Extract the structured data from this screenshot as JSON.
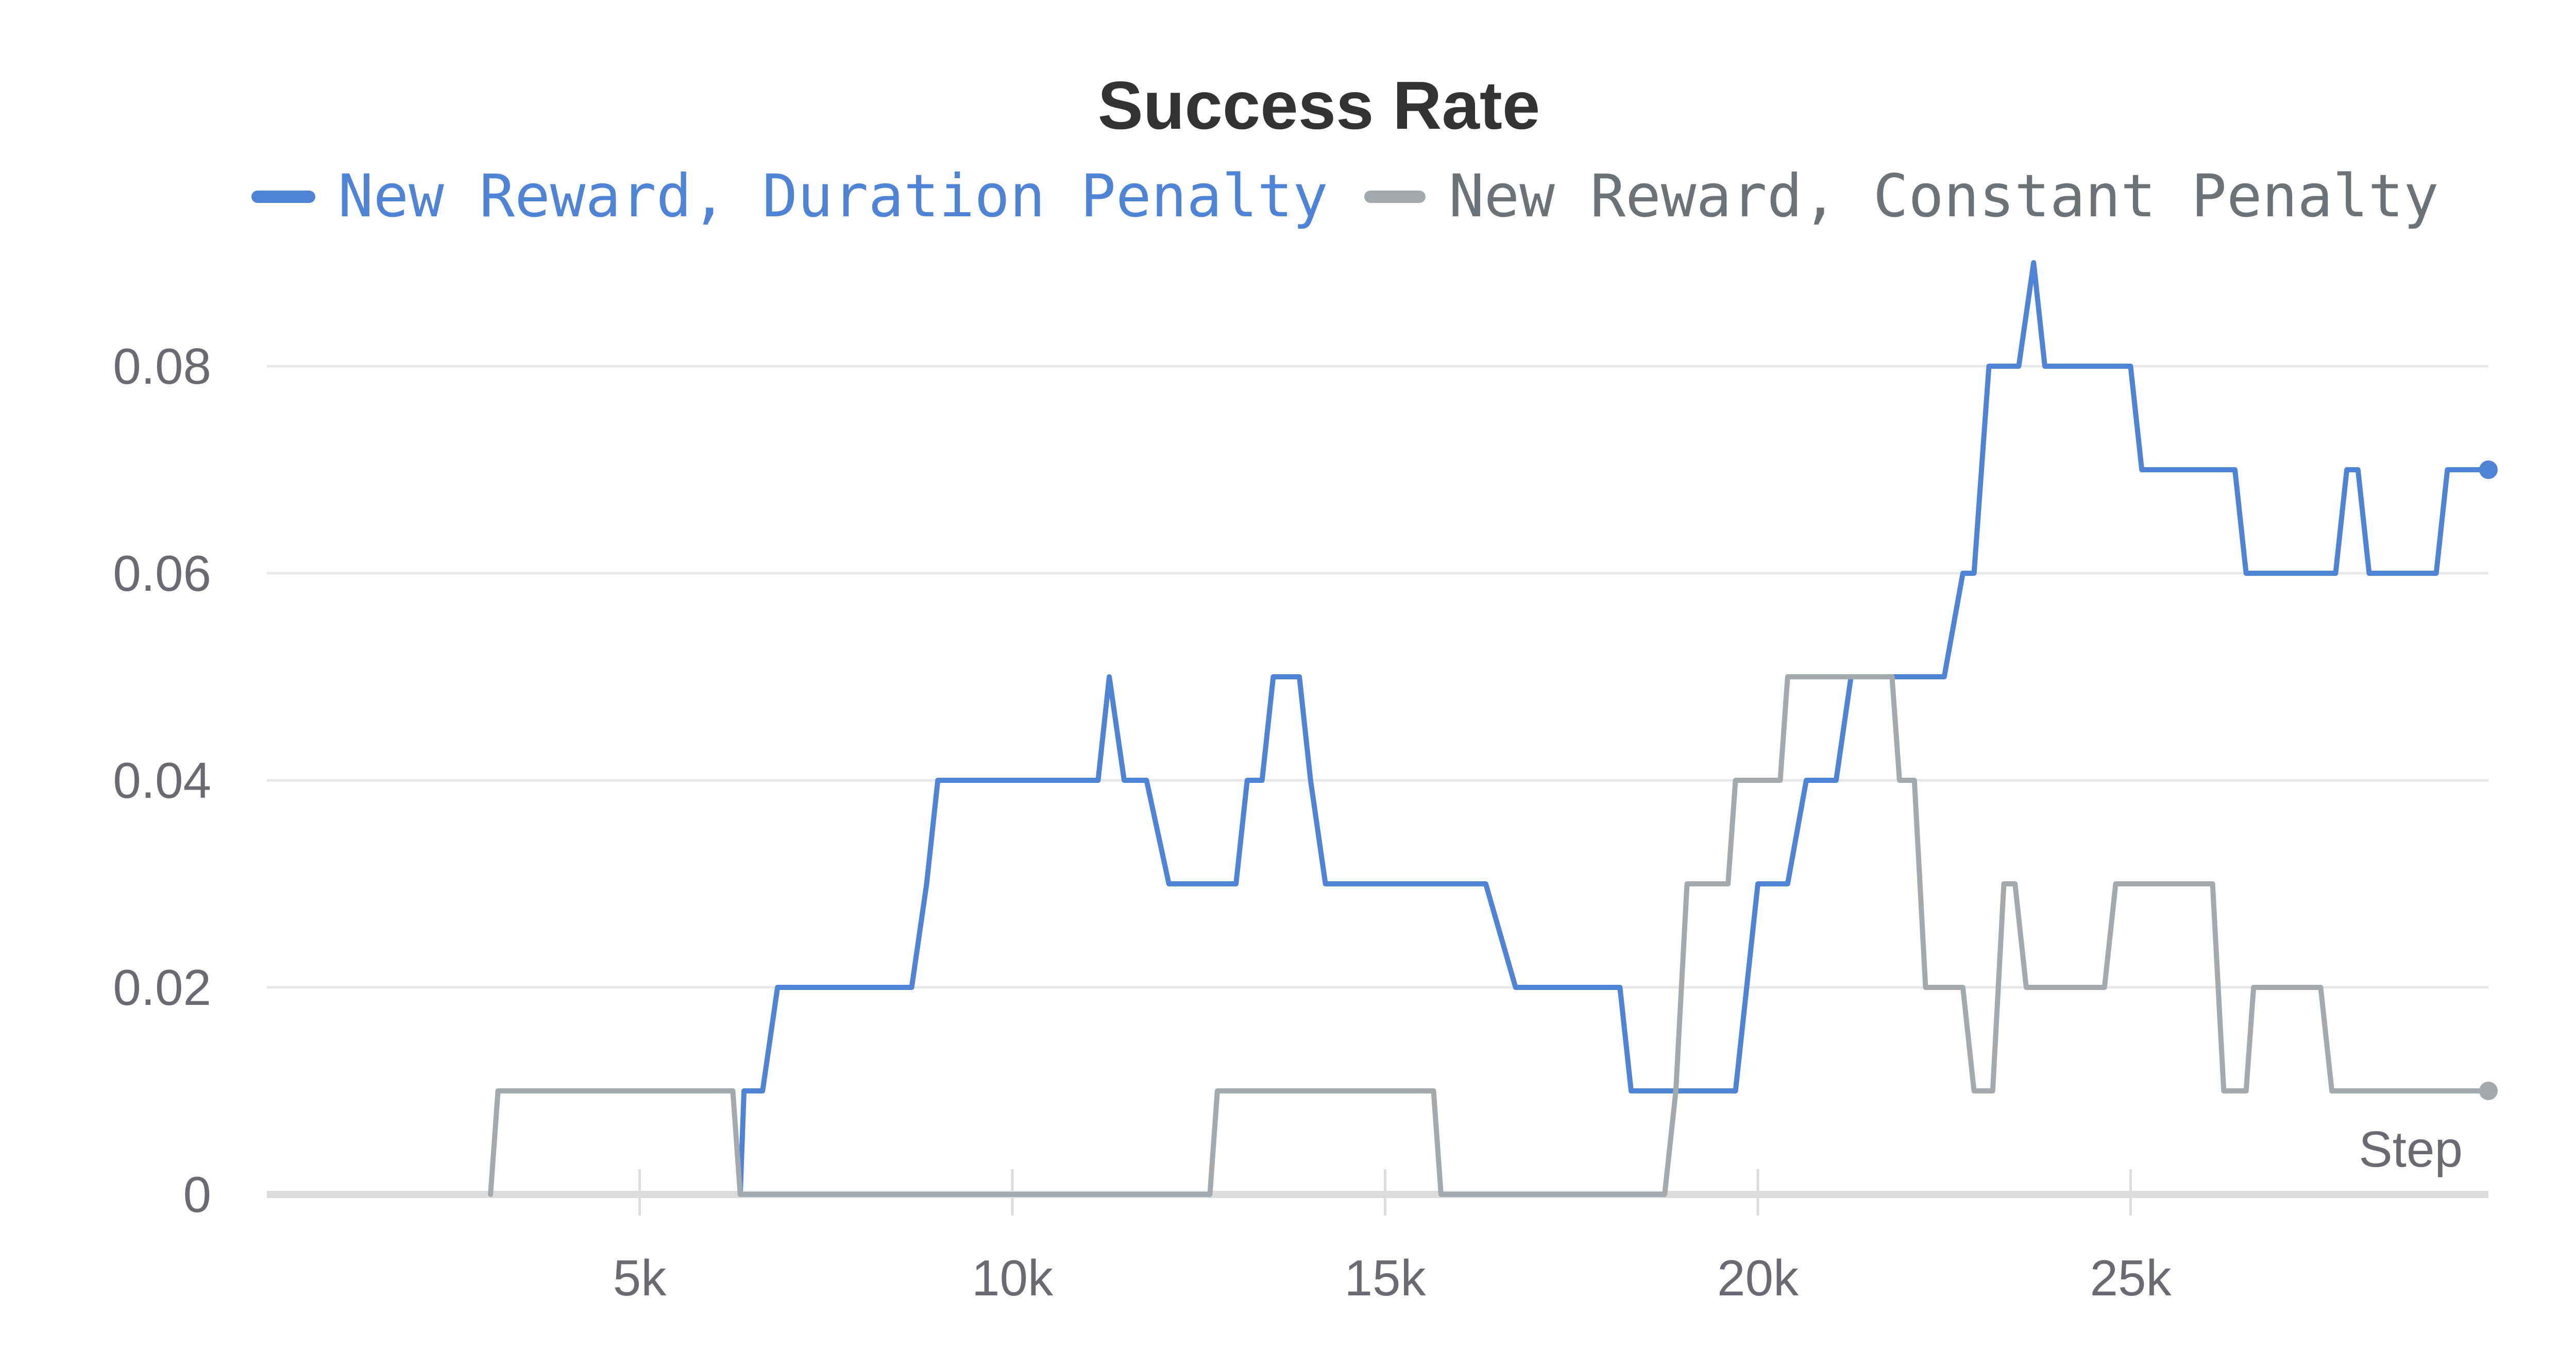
{
  "chart_data": {
    "type": "line",
    "title": "Success Rate",
    "xlabel": "Step",
    "ylabel": "",
    "xlim": [
      0,
      29800
    ],
    "ylim": [
      0,
      0.09
    ],
    "xticks": [
      5000,
      10000,
      15000,
      20000,
      25000
    ],
    "xtick_labels": [
      "5k",
      "10k",
      "15k",
      "20k",
      "25k"
    ],
    "yticks": [
      0,
      0.02,
      0.04,
      0.06,
      0.08
    ],
    "ytick_labels": [
      "0",
      "0.02",
      "0.04",
      "0.06",
      "0.08"
    ],
    "grid": true,
    "legend_position": "top",
    "series": [
      {
        "name": "New Reward, Duration Penalty",
        "color": "#4f83d6",
        "points": [
          [
            6350,
            0
          ],
          [
            6400,
            0.01
          ],
          [
            6650,
            0.01
          ],
          [
            6850,
            0.02
          ],
          [
            8650,
            0.02
          ],
          [
            8850,
            0.03
          ],
          [
            9000,
            0.04
          ],
          [
            11150,
            0.04
          ],
          [
            11300,
            0.05
          ],
          [
            11500,
            0.04
          ],
          [
            11800,
            0.04
          ],
          [
            12100,
            0.03
          ],
          [
            13000,
            0.03
          ],
          [
            13150,
            0.04
          ],
          [
            13350,
            0.04
          ],
          [
            13500,
            0.05
          ],
          [
            13850,
            0.05
          ],
          [
            14000,
            0.04
          ],
          [
            14200,
            0.03
          ],
          [
            16350,
            0.03
          ],
          [
            16750,
            0.02
          ],
          [
            18150,
            0.02
          ],
          [
            18300,
            0.01
          ],
          [
            19700,
            0.01
          ],
          [
            19850,
            0.02
          ],
          [
            20000,
            0.03
          ],
          [
            20400,
            0.03
          ],
          [
            20650,
            0.04
          ],
          [
            21050,
            0.04
          ],
          [
            21250,
            0.05
          ],
          [
            22500,
            0.05
          ],
          [
            22750,
            0.06
          ],
          [
            22900,
            0.06
          ],
          [
            23100,
            0.08
          ],
          [
            23500,
            0.08
          ],
          [
            23700,
            0.09
          ],
          [
            23850,
            0.08
          ],
          [
            25000,
            0.08
          ],
          [
            25150,
            0.07
          ],
          [
            26400,
            0.07
          ],
          [
            26550,
            0.06
          ],
          [
            27750,
            0.06
          ],
          [
            27900,
            0.07
          ],
          [
            28050,
            0.07
          ],
          [
            28200,
            0.06
          ],
          [
            29100,
            0.06
          ],
          [
            29250,
            0.07
          ],
          [
            29800,
            0.07
          ]
        ]
      },
      {
        "name": "New Reward, Constant Penalty",
        "color": "#a4a9ad",
        "points": [
          [
            3000,
            0
          ],
          [
            3100,
            0.01
          ],
          [
            6250,
            0.01
          ],
          [
            6350,
            0
          ],
          [
            12650,
            0
          ],
          [
            12750,
            0.01
          ],
          [
            15650,
            0.01
          ],
          [
            15750,
            0
          ],
          [
            18750,
            0
          ],
          [
            18900,
            0.01
          ],
          [
            19050,
            0.03
          ],
          [
            19600,
            0.03
          ],
          [
            19700,
            0.04
          ],
          [
            20300,
            0.04
          ],
          [
            20400,
            0.05
          ],
          [
            21800,
            0.05
          ],
          [
            21900,
            0.04
          ],
          [
            22100,
            0.04
          ],
          [
            22250,
            0.02
          ],
          [
            22750,
            0.02
          ],
          [
            22900,
            0.01
          ],
          [
            23150,
            0.01
          ],
          [
            23300,
            0.03
          ],
          [
            23450,
            0.03
          ],
          [
            23600,
            0.02
          ],
          [
            24650,
            0.02
          ],
          [
            24800,
            0.03
          ],
          [
            26100,
            0.03
          ],
          [
            26250,
            0.01
          ],
          [
            26550,
            0.01
          ],
          [
            26650,
            0.02
          ],
          [
            27550,
            0.02
          ],
          [
            27700,
            0.01
          ],
          [
            29800,
            0.01
          ]
        ]
      }
    ]
  }
}
